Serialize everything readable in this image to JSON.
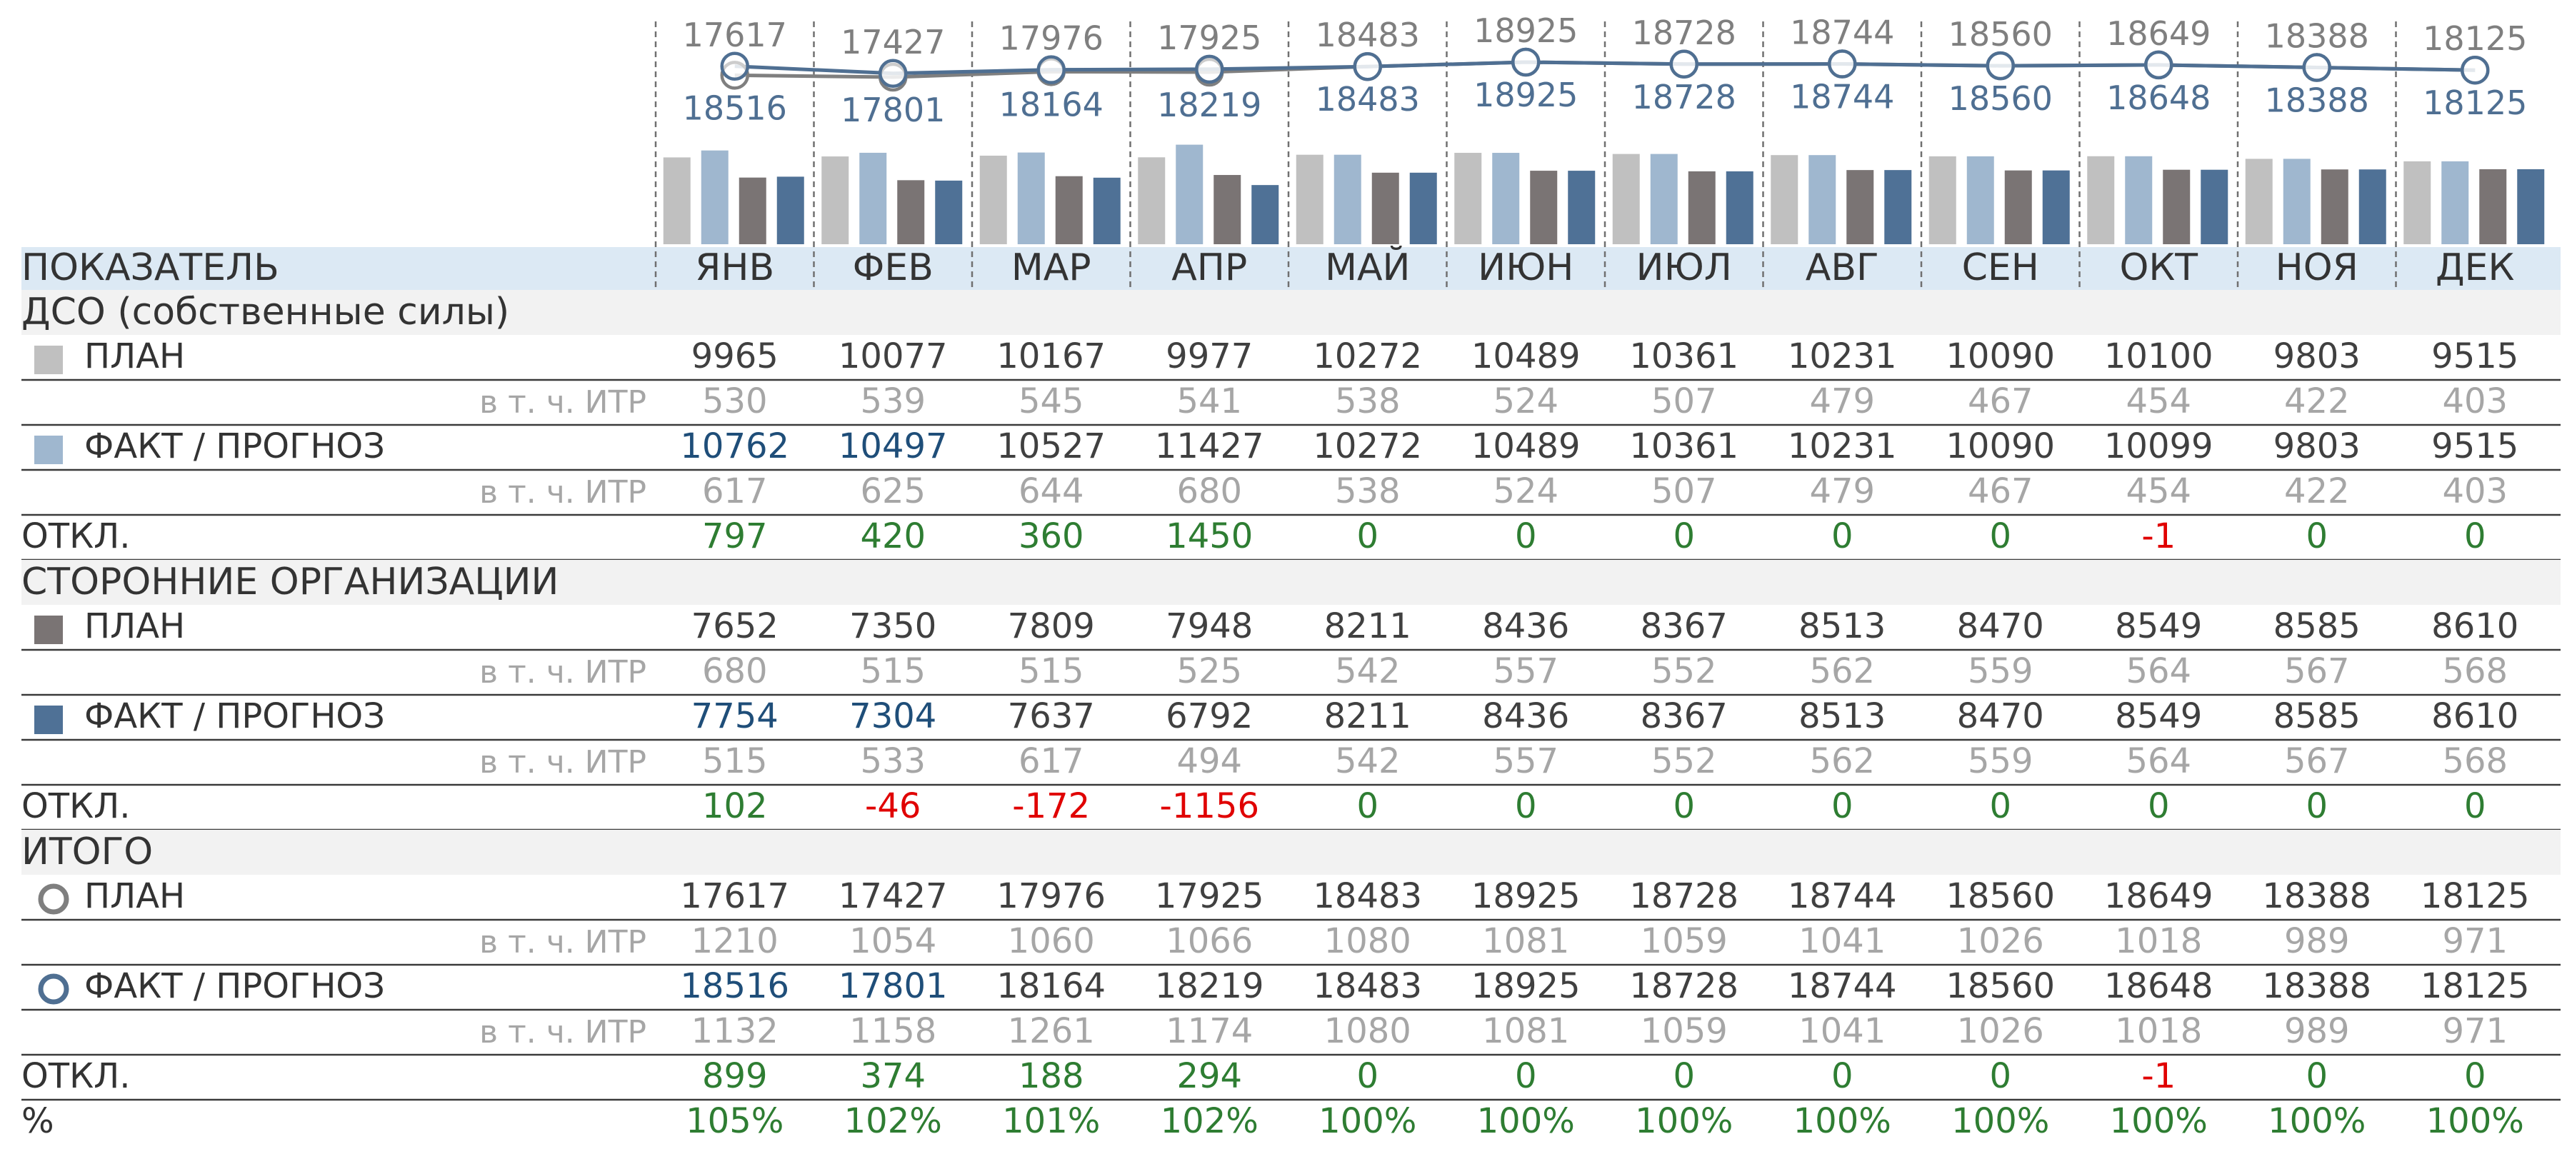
{
  "header": {
    "label": "ПОКАЗАТЕЛЬ"
  },
  "months": [
    "ЯНВ",
    "ФЕВ",
    "МАР",
    "АПР",
    "МАЙ",
    "ИЮН",
    "ИЮЛ",
    "АВГ",
    "СЕН",
    "ОКТ",
    "НОЯ",
    "ДЕК"
  ],
  "colors": {
    "dso_plan": "#c0c0c0",
    "dso_fact": "#9fb7cf",
    "ext_plan": "#7a7474",
    "ext_fact": "#4f7196",
    "total_plan_line": "#7f7f7f",
    "total_fact_line": "#4f6f92",
    "forecast_value": "#404040",
    "fact_value": "#1f4e79",
    "itr_value": "#a6a6a6",
    "positive": "#2e7d32",
    "negative": "#e00000",
    "header_bg": "#dce9f4",
    "section_bg": "#f2f2f2"
  },
  "sections": [
    {
      "title": "ДСО (собственные силы)",
      "rows": [
        {
          "label": "ПЛАН",
          "marker": "square",
          "marker_color": "#c0c0c0",
          "values": [
            9965,
            10077,
            10167,
            9977,
            10272,
            10489,
            10361,
            10231,
            10090,
            10100,
            9803,
            9515
          ]
        },
        {
          "label": "в т. ч. ИТР",
          "type": "itr",
          "values": [
            530,
            539,
            545,
            541,
            538,
            524,
            507,
            479,
            467,
            454,
            422,
            403
          ]
        },
        {
          "label": "ФАКТ / ПРОГНОЗ",
          "marker": "square",
          "marker_color": "#9fb7cf",
          "fact_months": 2,
          "values": [
            10762,
            10497,
            10527,
            11427,
            10272,
            10489,
            10361,
            10231,
            10090,
            10099,
            9803,
            9515
          ]
        },
        {
          "label": "в т. ч. ИТР",
          "type": "itr",
          "values": [
            617,
            625,
            644,
            680,
            538,
            524,
            507,
            479,
            467,
            454,
            422,
            403
          ]
        },
        {
          "label": "ОТКЛ.",
          "type": "dev",
          "values": [
            797,
            420,
            360,
            1450,
            0,
            0,
            0,
            0,
            0,
            -1,
            0,
            0
          ]
        }
      ]
    },
    {
      "title": "СТОРОННИЕ ОРГАНИЗАЦИИ",
      "rows": [
        {
          "label": "ПЛАН",
          "marker": "square",
          "marker_color": "#7a7474",
          "values": [
            7652,
            7350,
            7809,
            7948,
            8211,
            8436,
            8367,
            8513,
            8470,
            8549,
            8585,
            8610
          ]
        },
        {
          "label": "в т. ч. ИТР",
          "type": "itr",
          "values": [
            680,
            515,
            515,
            525,
            542,
            557,
            552,
            562,
            559,
            564,
            567,
            568
          ]
        },
        {
          "label": "ФАКТ / ПРОГНОЗ",
          "marker": "square",
          "marker_color": "#4f7196",
          "fact_months": 2,
          "values": [
            7754,
            7304,
            7637,
            6792,
            8211,
            8436,
            8367,
            8513,
            8470,
            8549,
            8585,
            8610
          ]
        },
        {
          "label": "в т. ч. ИТР",
          "type": "itr",
          "values": [
            515,
            533,
            617,
            494,
            542,
            557,
            552,
            562,
            559,
            564,
            567,
            568
          ]
        },
        {
          "label": "ОТКЛ.",
          "type": "dev",
          "values": [
            102,
            -46,
            -172,
            -1156,
            0,
            0,
            0,
            0,
            0,
            0,
            0,
            0
          ]
        }
      ]
    },
    {
      "title": "ИТОГО",
      "rows": [
        {
          "label": "ПЛАН",
          "marker": "circle",
          "marker_color": "#7f7f7f",
          "values": [
            17617,
            17427,
            17976,
            17925,
            18483,
            18925,
            18728,
            18744,
            18560,
            18649,
            18388,
            18125
          ]
        },
        {
          "label": "в т. ч. ИТР",
          "type": "itr",
          "values": [
            1210,
            1054,
            1060,
            1066,
            1080,
            1081,
            1059,
            1041,
            1026,
            1018,
            989,
            971
          ]
        },
        {
          "label": "ФАКТ / ПРОГНОЗ",
          "marker": "circle",
          "marker_color": "#4f6f92",
          "fact_months": 2,
          "values": [
            18516,
            17801,
            18164,
            18219,
            18483,
            18925,
            18728,
            18744,
            18560,
            18648,
            18388,
            18125
          ]
        },
        {
          "label": "в т. ч. ИТР",
          "type": "itr",
          "values": [
            1132,
            1158,
            1261,
            1174,
            1080,
            1081,
            1059,
            1041,
            1026,
            1018,
            989,
            971
          ]
        },
        {
          "label": "ОТКЛ.",
          "type": "dev",
          "values": [
            899,
            374,
            188,
            294,
            0,
            0,
            0,
            0,
            0,
            -1,
            0,
            0
          ]
        },
        {
          "label": "%",
          "type": "pct",
          "values": [
            "105%",
            "102%",
            "101%",
            "102%",
            "100%",
            "100%",
            "100%",
            "100%",
            "100%",
            "100%",
            "100%",
            "100%"
          ]
        }
      ]
    }
  ],
  "chart_data": {
    "type": "bar",
    "categories": [
      "ЯНВ",
      "ФЕВ",
      "МАР",
      "АПР",
      "МАЙ",
      "ИЮН",
      "ИЮЛ",
      "АВГ",
      "СЕН",
      "ОКТ",
      "НОЯ",
      "ДЕК"
    ],
    "series": [
      {
        "name": "ДСО (собственные силы) ПЛАН",
        "values": [
          9965,
          10077,
          10167,
          9977,
          10272,
          10489,
          10361,
          10231,
          10090,
          10100,
          9803,
          9515
        ]
      },
      {
        "name": "ДСО (собственные силы) ФАКТ / ПРОГНОЗ",
        "values": [
          10762,
          10497,
          10527,
          11427,
          10272,
          10489,
          10361,
          10231,
          10090,
          10099,
          9803,
          9515
        ]
      },
      {
        "name": "СТОРОННИЕ ОРГАНИЗАЦИИ ПЛАН",
        "values": [
          7652,
          7350,
          7809,
          7948,
          8211,
          8436,
          8367,
          8513,
          8470,
          8549,
          8585,
          8610
        ]
      },
      {
        "name": "СТОРОННИЕ ОРГАНИЗАЦИИ ФАКТ / ПРОГНОЗ",
        "values": [
          7754,
          7304,
          7637,
          6792,
          8211,
          8436,
          8367,
          8513,
          8470,
          8549,
          8585,
          8610
        ]
      }
    ],
    "lines": [
      {
        "name": "ИТОГО ПЛАН",
        "values": [
          17617,
          17427,
          17976,
          17925,
          18483,
          18925,
          18728,
          18744,
          18560,
          18649,
          18388,
          18125
        ]
      },
      {
        "name": "ИТОГО ФАКТ / ПРОГНОЗ",
        "values": [
          18516,
          17801,
          18164,
          18219,
          18483,
          18925,
          18728,
          18744,
          18560,
          18648,
          18388,
          18125
        ]
      }
    ],
    "ylim": [
      0,
      12000
    ],
    "line_ylim": [
      0,
      18950
    ],
    "grid": false,
    "legend": "table-rows"
  }
}
